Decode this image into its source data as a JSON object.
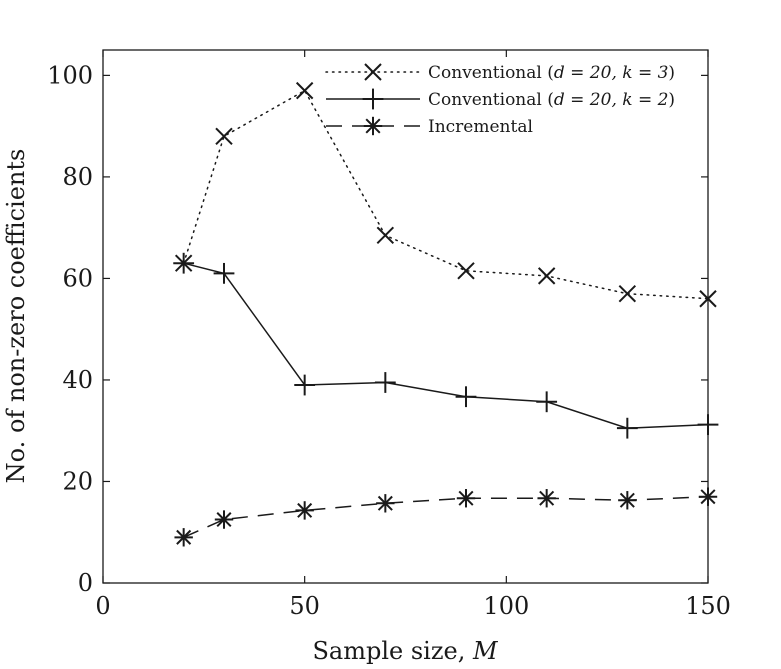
{
  "chart_data": {
    "type": "line",
    "title": "",
    "xlabel": "Sample size, ",
    "xlabel_var": "M",
    "ylabel": "No. of non-zero coefficients",
    "xlim": [
      0,
      150
    ],
    "ylim": [
      0,
      105
    ],
    "xticks": [
      0,
      50,
      100,
      150
    ],
    "yticks": [
      0,
      20,
      40,
      60,
      80,
      100
    ],
    "xtick_labels": [
      "0",
      "50",
      "100",
      "150"
    ],
    "ytick_labels": [
      "0",
      "20",
      "40",
      "60",
      "80",
      "100"
    ],
    "grid": false,
    "legend_position": "top-right",
    "series": [
      {
        "name": "Conventional (d = 20, k = 3)",
        "legend_text": "Conventional (",
        "legend_math": "d = 20, k = 3",
        "legend_close": ")",
        "line": "dotted",
        "marker": "x",
        "x": [
          20,
          30,
          50,
          70,
          90,
          110,
          130,
          150
        ],
        "y": [
          63,
          88,
          97,
          68.5,
          61.5,
          60.5,
          57,
          56
        ]
      },
      {
        "name": "Conventional (d = 20, k = 2)",
        "legend_text": "Conventional (",
        "legend_math": "d = 20, k = 2",
        "legend_close": ")",
        "line": "solid",
        "marker": "plus",
        "x": [
          20,
          30,
          50,
          70,
          90,
          110,
          130,
          150
        ],
        "y": [
          63,
          61,
          39,
          39.5,
          36.7,
          35.7,
          30.5,
          31.2
        ]
      },
      {
        "name": "Incremental",
        "legend_text": "Incremental",
        "legend_math": "",
        "legend_close": "",
        "line": "dashed",
        "marker": "asterisk",
        "x": [
          20,
          30,
          50,
          70,
          90,
          110,
          130,
          150
        ],
        "y": [
          9,
          12.5,
          14.3,
          15.7,
          16.7,
          16.7,
          16.3,
          17
        ]
      }
    ]
  }
}
